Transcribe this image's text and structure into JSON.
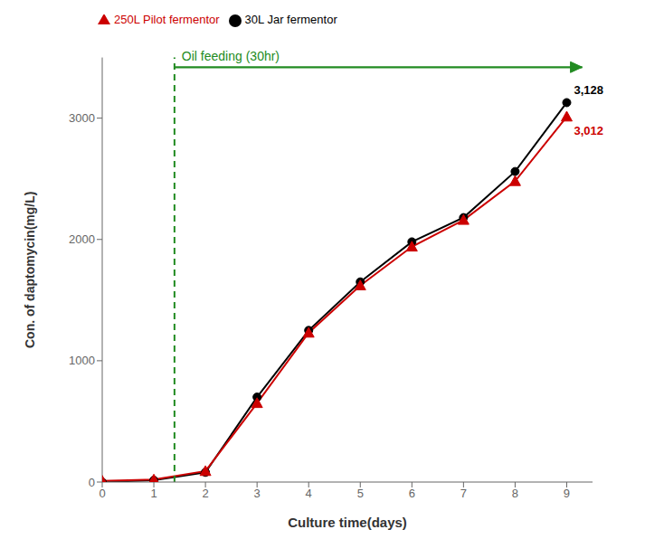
{
  "chart_data": {
    "type": "line",
    "x": [
      0,
      1,
      2,
      3,
      4,
      5,
      6,
      7,
      8,
      9
    ],
    "series": [
      {
        "name": "30L Jar fermentor",
        "color": "#000000",
        "marker": "circle",
        "values": [
          0,
          15,
          80,
          700,
          1250,
          1650,
          1980,
          2180,
          2560,
          3128
        ]
      },
      {
        "name": "250L Pilot fermentor",
        "color": "#cc0000",
        "marker": "triangle",
        "values": [
          10,
          20,
          90,
          650,
          1230,
          1620,
          1940,
          2160,
          2480,
          3012
        ]
      }
    ],
    "xlabel": "Culture time(days)",
    "ylabel": "Con. of daptomycin(mg/L)",
    "xlim": [
      0,
      9.5
    ],
    "ylim": [
      0,
      3500
    ],
    "xticks": [
      0,
      1,
      2,
      3,
      4,
      5,
      6,
      7,
      8,
      9
    ],
    "yticks": [
      0,
      1000,
      2000,
      3000
    ],
    "grid": false,
    "legend": "upper left",
    "annotations": [
      {
        "type": "vline",
        "x": 1.4,
        "color": "#228B22",
        "line_style": "dashed"
      },
      {
        "type": "arrow",
        "text": "Oil feeding (30hr)",
        "x_start": 1.4,
        "x_end": 9.3,
        "y": 3420,
        "color": "#228B22"
      },
      {
        "type": "label",
        "text": "3,128",
        "x": 9,
        "y": 3128,
        "color": "#000000"
      },
      {
        "type": "label",
        "text": "3,012",
        "x": 9,
        "y": 3012,
        "color": "#cc0000"
      }
    ]
  }
}
